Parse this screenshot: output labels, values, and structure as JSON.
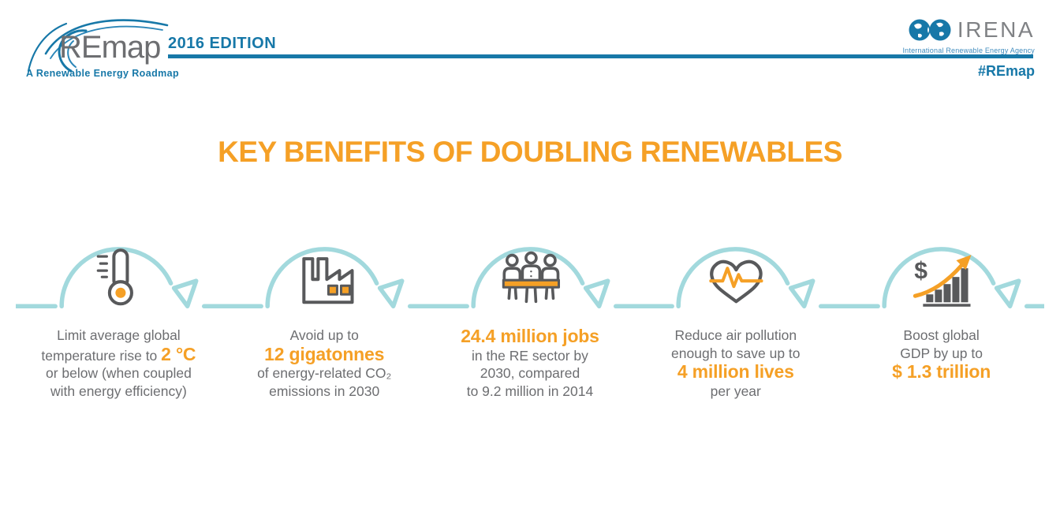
{
  "header": {
    "remap_logo": {
      "wordmark": "REmap",
      "tagline": "A Renewable Energy Roadmap",
      "edition": "2016 EDITION"
    },
    "irena_logo": {
      "wordmark": "IRENA",
      "subtitle": "International Renewable Energy Agency",
      "hashtag": "#REmap"
    }
  },
  "title": "KEY BENEFITS OF DOUBLING RENEWABLES",
  "benefits": [
    {
      "icon": "thermometer-icon",
      "segments": [
        {
          "text": "Limit average global",
          "highlight": false,
          "break_after": true
        },
        {
          "text": "temperature rise to ",
          "highlight": false,
          "break_after": false
        },
        {
          "text": "2 °C",
          "highlight": true,
          "break_after": true
        },
        {
          "text": "or below (when coupled",
          "highlight": false,
          "break_after": true
        },
        {
          "text": "with energy efficiency)",
          "highlight": false,
          "break_after": false
        }
      ]
    },
    {
      "icon": "factory-emissions-icon",
      "segments": [
        {
          "text": "Avoid up to",
          "highlight": false,
          "break_after": true
        },
        {
          "text": "12 gigatonnes",
          "highlight": true,
          "break_after": true
        },
        {
          "text": "of energy-related CO₂",
          "highlight": false,
          "break_after": true
        },
        {
          "text": "emissions in 2030",
          "highlight": false,
          "break_after": false
        }
      ]
    },
    {
      "icon": "jobs-people-icon",
      "segments": [
        {
          "text": "24.4 million jobs",
          "highlight": true,
          "break_after": true
        },
        {
          "text": "in the RE sector by",
          "highlight": false,
          "break_after": true
        },
        {
          "text": "2030, compared",
          "highlight": false,
          "break_after": true
        },
        {
          "text": "to 9.2 million in 2014",
          "highlight": false,
          "break_after": false
        }
      ]
    },
    {
      "icon": "heart-pulse-icon",
      "segments": [
        {
          "text": "Reduce air pollution",
          "highlight": false,
          "break_after": true
        },
        {
          "text": "enough to save up to",
          "highlight": false,
          "break_after": true
        },
        {
          "text": "4 million lives",
          "highlight": true,
          "break_after": true
        },
        {
          "text": "per year",
          "highlight": false,
          "break_after": false
        }
      ]
    },
    {
      "icon": "gdp-growth-icon",
      "segments": [
        {
          "text": "Boost global",
          "highlight": false,
          "break_after": true
        },
        {
          "text": "GDP by up to",
          "highlight": false,
          "break_after": true
        },
        {
          "text": "$ 1.3 trillion",
          "highlight": true,
          "break_after": false
        }
      ]
    }
  ],
  "colors": {
    "orange": "#F5A026",
    "text_gray": "#6D6E71",
    "icon_gray": "#58595B",
    "arc_light_blue": "#A2D9DD",
    "brand_blue": "#1778A8"
  }
}
